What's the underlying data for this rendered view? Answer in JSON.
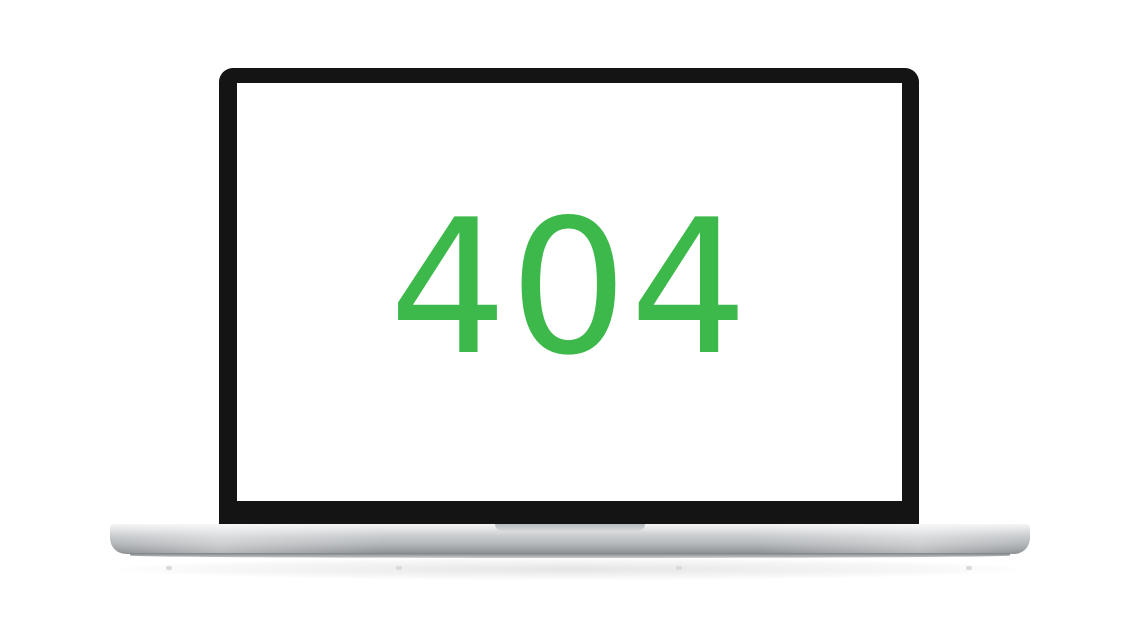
{
  "screen": {
    "error_code": "404",
    "error_color": "#3cb94a",
    "bezel_color": "#141414",
    "background_color": "#ffffff"
  },
  "device": {
    "type": "laptop-icon"
  }
}
